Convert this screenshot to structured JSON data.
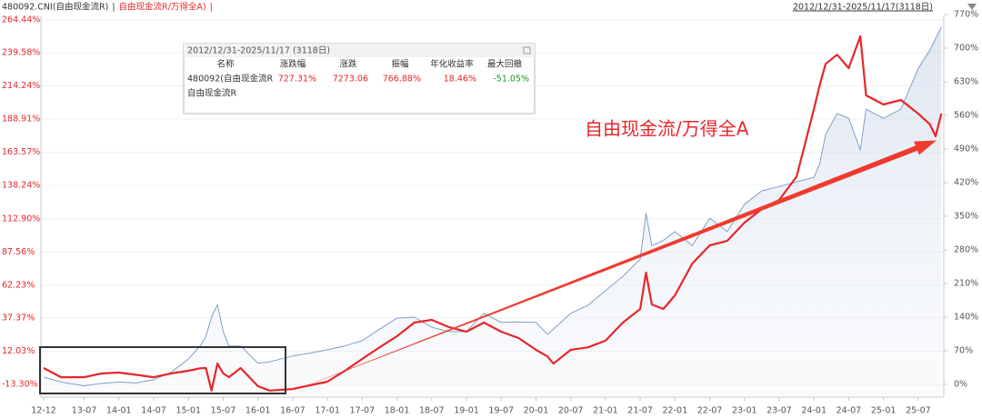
{
  "chart_data": {
    "type": "line",
    "legend_separator": "|",
    "date_range": "2012/12/31-2025/11/17(3118日)",
    "annotation": "自由现金流/万得全A",
    "x": [
      "12-12",
      "13-03",
      "13-07",
      "13-10",
      "14-01",
      "14-04",
      "14-07",
      "14-10",
      "15-01",
      "15-03",
      "15-04",
      "15-05",
      "15-06",
      "15-07",
      "15-08",
      "15-10",
      "16-01",
      "16-03",
      "16-07",
      "16-10",
      "17-01",
      "17-04",
      "17-07",
      "17-10",
      "18-01",
      "18-04",
      "18-07",
      "18-10",
      "19-01",
      "19-04",
      "19-07",
      "19-10",
      "20-01",
      "20-03",
      "20-04",
      "20-07",
      "20-10",
      "21-01",
      "21-04",
      "21-07",
      "21-08",
      "21-09",
      "21-11",
      "22-01",
      "22-04",
      "22-07",
      "22-10",
      "23-01",
      "23-04",
      "23-07",
      "23-10",
      "24-01",
      "24-02",
      "24-03",
      "24-05",
      "24-07",
      "24-09",
      "24-10",
      "25-01",
      "25-04",
      "25-07",
      "25-09",
      "25-10",
      "25-11"
    ],
    "xticks": [
      "12-12",
      "13-07",
      "14-01",
      "14-07",
      "15-01",
      "15-07",
      "16-01",
      "16-07",
      "17-01",
      "17-07",
      "18-01",
      "18-07",
      "19-01",
      "19-07",
      "20-01",
      "20-07",
      "21-01",
      "21-07",
      "22-01",
      "22-07",
      "23-01",
      "23-07",
      "24-01",
      "24-07",
      "25-01",
      "25-07"
    ],
    "series": [
      {
        "name": "480092.CNI(自由现金流R)",
        "color": "#7f9fc8",
        "axis": "y2",
        "values": [
          15,
          5,
          -3,
          2,
          5,
          3,
          10,
          25,
          53,
          80,
          100,
          140,
          166,
          110,
          80,
          80,
          44,
          47,
          59,
          65,
          72,
          80,
          91,
          115,
          138,
          140,
          119,
          110,
          110,
          148,
          129,
          130,
          129,
          104,
          115,
          148,
          165,
          195,
          225,
          261,
          356,
          289,
          300,
          318,
          289,
          346,
          318,
          375,
          403,
          412,
          422,
          431,
          460,
          520,
          564,
          554,
          488,
          573,
          554,
          573,
          658,
          696,
          720,
          744
        ]
      },
      {
        "name": "自由现金流R/万得全A)",
        "color": "#e8262a",
        "values": [
          -0.8,
          -7.8,
          -7.8,
          -5,
          -4.3,
          -6,
          -7.8,
          -5,
          -2.9,
          -1,
          -0.8,
          -18,
          2.6,
          -5,
          -7.8,
          -0.8,
          -14.7,
          -18,
          -16.8,
          -14,
          -11.2,
          -3,
          6.1,
          15,
          23.4,
          33.8,
          35.9,
          30.3,
          26.9,
          33.8,
          26.9,
          22,
          13,
          8,
          2.6,
          13,
          15,
          20,
          33.8,
          44.2,
          71.9,
          47.6,
          44.2,
          54.6,
          78.8,
          92.7,
          96.1,
          110,
          120.4,
          127.3,
          145,
          196.6,
          215,
          231,
          238,
          227.7,
          252,
          207,
          200,
          203.5,
          193,
          185,
          175.8,
          193
        ]
      }
    ],
    "ylim": [
      -21.6,
      267.2
    ],
    "yticks": [
      {
        "value": 264.44,
        "label": "264.44%"
      },
      {
        "value": 239.58,
        "label": "239.58%"
      },
      {
        "value": 214.24,
        "label": "214.24%"
      },
      {
        "value": 188.91,
        "label": "188.91%"
      },
      {
        "value": 163.57,
        "label": "163.57%"
      },
      {
        "value": 138.24,
        "label": "138.24%"
      },
      {
        "value": 112.9,
        "label": "112.90%"
      },
      {
        "value": 87.56,
        "label": "87.56%"
      },
      {
        "value": 62.23,
        "label": "62.23%"
      },
      {
        "value": 37.37,
        "label": "37.37%"
      },
      {
        "value": 12.03,
        "label": "12.03%"
      },
      {
        "value": -13.3,
        "label": "-13.30%"
      }
    ],
    "y2lim": [
      -22.7,
      766.3
    ],
    "y2ticks": [
      {
        "value": 770,
        "label": "770%"
      },
      {
        "value": 700,
        "label": "700%"
      },
      {
        "value": 630,
        "label": "630%"
      },
      {
        "value": 560,
        "label": "560%"
      },
      {
        "value": 490,
        "label": "490%"
      },
      {
        "value": 420,
        "label": "420%"
      },
      {
        "value": 350,
        "label": "350%"
      },
      {
        "value": 280,
        "label": "280%"
      },
      {
        "value": 210,
        "label": "210%"
      },
      {
        "value": 140,
        "label": "140%"
      },
      {
        "value": 70,
        "label": "70%"
      },
      {
        "value": 0,
        "label": "0%"
      }
    ],
    "grid": true,
    "info_table": {
      "title": "2012/12/31-2025/11/17 (3118日)",
      "columns": [
        "名称",
        "涨跌幅",
        "涨跌",
        "振幅",
        "年化收益率",
        "最大回撤"
      ],
      "rows": [
        [
          "480092(自由现金流R",
          "727.31%",
          "7273.06",
          "766.88%",
          "18.46%",
          "-51.05%"
        ],
        [
          "自由现金流R"
        ]
      ]
    }
  }
}
